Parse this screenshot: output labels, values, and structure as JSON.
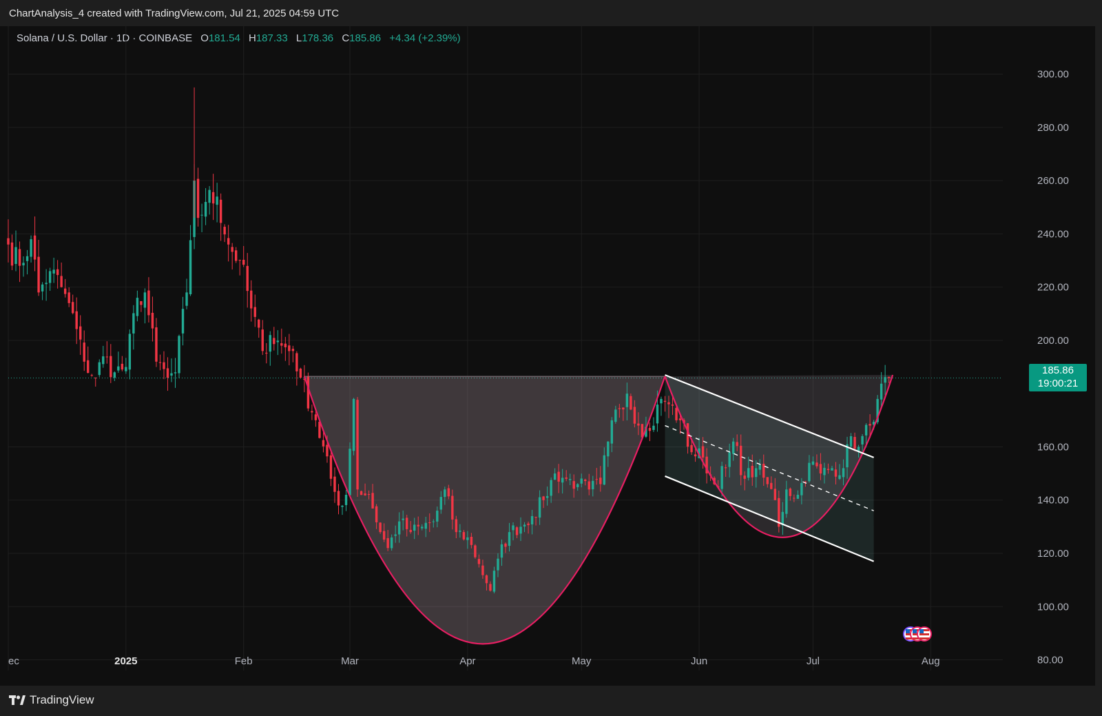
{
  "header": {
    "attribution": "ChartAnalysis_4 created with TradingView.com, Jul 21, 2025 04:59 UTC"
  },
  "legend": {
    "symbol": "Solana / U.S. Dollar · 1D · COINBASE",
    "open_label": "O",
    "open": "181.54",
    "high_label": "H",
    "high": "187.33",
    "low_label": "L",
    "low": "178.36",
    "close_label": "C",
    "close": "185.86",
    "change": "+4.34 (+2.39%)"
  },
  "price_tag": {
    "price": "185.86",
    "countdown": "19:00:21"
  },
  "footer": {
    "brand": "TradingView"
  },
  "colors": {
    "background": "#0f0f0f",
    "up": "#22ab94",
    "down": "#f23645",
    "pattern_line": "#e91e63",
    "channel_line": "#ffffff",
    "price_tag": "#089981"
  },
  "chart_data": {
    "type": "candlestick",
    "title": "",
    "ylim": [
      76,
      318
    ],
    "xlim": [
      "2024-12-01",
      "2025-08-20"
    ],
    "y_ticks": [
      "300.00",
      "280.00",
      "260.00",
      "240.00",
      "220.00",
      "200.00",
      "160.00",
      "140.00",
      "120.00",
      "100.00",
      "80.00"
    ],
    "x_ticks": [
      {
        "label": "ec",
        "date": "2024-12-01"
      },
      {
        "label": "2025",
        "date": "2025-01-01"
      },
      {
        "label": "Feb",
        "date": "2025-02-01"
      },
      {
        "label": "Mar",
        "date": "2025-03-01"
      },
      {
        "label": "Apr",
        "date": "2025-04-01"
      },
      {
        "label": "May",
        "date": "2025-05-01"
      },
      {
        "label": "Jun",
        "date": "2025-06-01"
      },
      {
        "label": "Jul",
        "date": "2025-07-01"
      },
      {
        "label": "Aug",
        "date": "2025-08-01"
      }
    ],
    "last_price": 185.86,
    "close_anchors": [
      [
        "2024-12-01",
        236
      ],
      [
        "2024-12-04",
        228
      ],
      [
        "2024-12-07",
        238
      ],
      [
        "2024-12-09",
        218
      ],
      [
        "2024-12-12",
        226
      ],
      [
        "2024-12-15",
        220
      ],
      [
        "2024-12-17",
        214
      ],
      [
        "2024-12-21",
        192
      ],
      [
        "2024-12-24",
        186
      ],
      [
        "2024-12-26",
        194
      ],
      [
        "2024-12-29",
        188
      ],
      [
        "2025-01-01",
        190
      ],
      [
        "2025-01-04",
        216
      ],
      [
        "2025-01-06",
        218
      ],
      [
        "2025-01-09",
        192
      ],
      [
        "2025-01-12",
        186
      ],
      [
        "2025-01-14",
        188
      ],
      [
        "2025-01-17",
        218
      ],
      [
        "2025-01-19",
        260
      ],
      [
        "2025-01-20",
        246
      ],
      [
        "2025-01-22",
        252
      ],
      [
        "2025-01-25",
        254
      ],
      [
        "2025-01-28",
        236
      ],
      [
        "2025-01-31",
        230
      ],
      [
        "2025-02-03",
        212
      ],
      [
        "2025-02-06",
        196
      ],
      [
        "2025-02-08",
        202
      ],
      [
        "2025-02-11",
        198
      ],
      [
        "2025-02-14",
        196
      ],
      [
        "2025-02-16",
        186
      ],
      [
        "2025-02-20",
        170
      ],
      [
        "2025-02-24",
        148
      ],
      [
        "2025-02-26",
        138
      ],
      [
        "2025-02-28",
        142
      ],
      [
        "2025-03-02",
        178
      ],
      [
        "2025-03-03",
        144
      ],
      [
        "2025-03-06",
        142
      ],
      [
        "2025-03-09",
        128
      ],
      [
        "2025-03-11",
        122
      ],
      [
        "2025-03-14",
        132
      ],
      [
        "2025-03-17",
        128
      ],
      [
        "2025-03-20",
        130
      ],
      [
        "2025-03-23",
        132
      ],
      [
        "2025-03-26",
        144
      ],
      [
        "2025-03-29",
        128
      ],
      [
        "2025-04-01",
        126
      ],
      [
        "2025-04-04",
        116
      ],
      [
        "2025-04-07",
        106
      ],
      [
        "2025-04-09",
        118
      ],
      [
        "2025-04-12",
        128
      ],
      [
        "2025-04-15",
        130
      ],
      [
        "2025-04-18",
        134
      ],
      [
        "2025-04-21",
        140
      ],
      [
        "2025-04-24",
        150
      ],
      [
        "2025-04-27",
        148
      ],
      [
        "2025-04-30",
        146
      ],
      [
        "2025-05-03",
        144
      ],
      [
        "2025-05-06",
        146
      ],
      [
        "2025-05-08",
        162
      ],
      [
        "2025-05-10",
        174
      ],
      [
        "2025-05-13",
        180
      ],
      [
        "2025-05-16",
        168
      ],
      [
        "2025-05-19",
        166
      ],
      [
        "2025-05-22",
        178
      ],
      [
        "2025-05-24",
        176
      ],
      [
        "2025-05-27",
        170
      ],
      [
        "2025-05-30",
        158
      ],
      [
        "2025-06-02",
        156
      ],
      [
        "2025-06-05",
        146
      ],
      [
        "2025-06-08",
        152
      ],
      [
        "2025-06-10",
        162
      ],
      [
        "2025-06-13",
        148
      ],
      [
        "2025-06-16",
        152
      ],
      [
        "2025-06-19",
        146
      ],
      [
        "2025-06-21",
        140
      ],
      [
        "2025-06-22",
        130
      ],
      [
        "2025-06-24",
        144
      ],
      [
        "2025-06-27",
        142
      ],
      [
        "2025-06-30",
        154
      ],
      [
        "2025-07-03",
        150
      ],
      [
        "2025-07-06",
        152
      ],
      [
        "2025-07-09",
        152
      ],
      [
        "2025-07-11",
        164
      ],
      [
        "2025-07-13",
        160
      ],
      [
        "2025-07-16",
        168
      ],
      [
        "2025-07-18",
        178
      ],
      [
        "2025-07-21",
        185.86
      ]
    ],
    "annotations": {
      "rim_level": 186.5,
      "cup": {
        "start": [
          "2025-02-17",
          186.5
        ],
        "bottom": [
          "2025-04-05",
          86
        ],
        "end": [
          "2025-05-23",
          186.5
        ]
      },
      "handle": {
        "start": [
          "2025-05-23",
          186.5
        ],
        "bottom": [
          "2025-06-23",
          126
        ],
        "end": [
          "2025-07-22",
          187
        ]
      },
      "channel_upper": [
        [
          "2025-05-23",
          187
        ],
        [
          "2025-07-17",
          156
        ]
      ],
      "channel_mid": [
        [
          "2025-05-23",
          168
        ],
        [
          "2025-07-17",
          136
        ]
      ],
      "channel_lower": [
        [
          "2025-05-23",
          149
        ],
        [
          "2025-07-17",
          117
        ]
      ]
    }
  }
}
